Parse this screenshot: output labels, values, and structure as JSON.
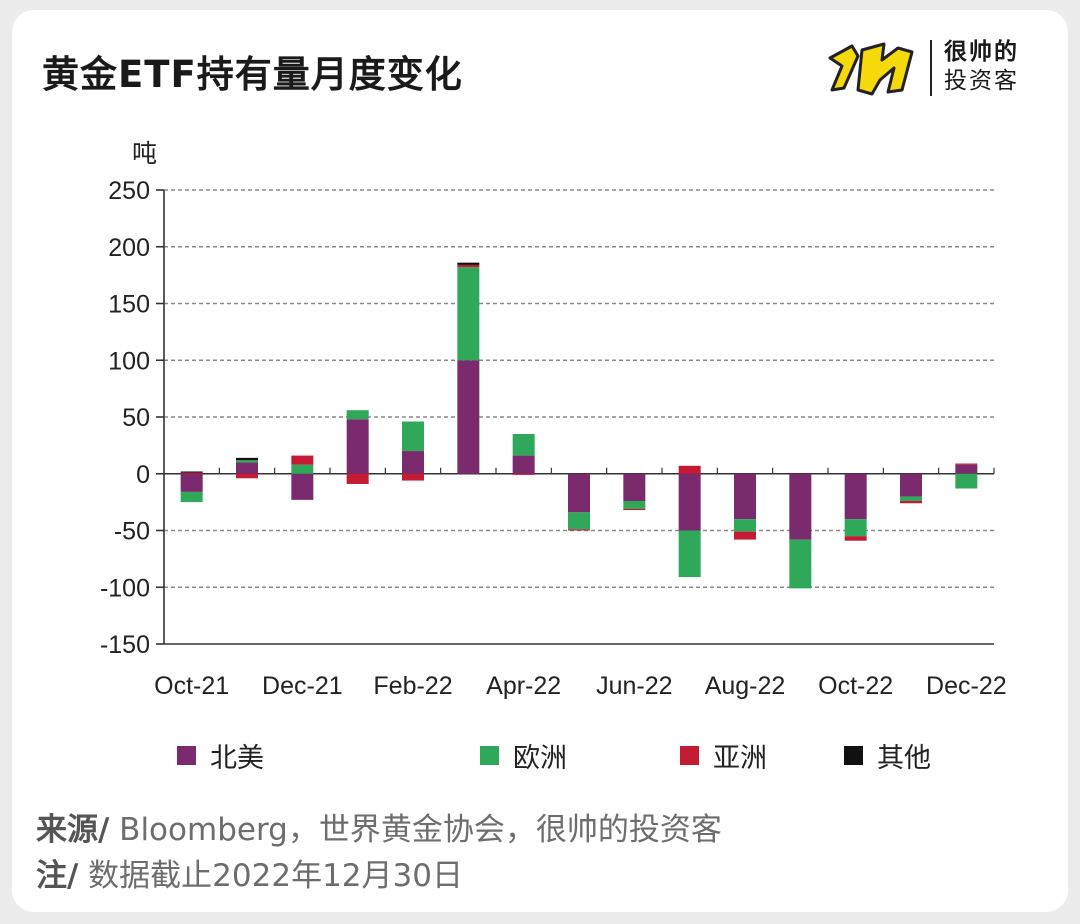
{
  "title": "黄金ETF持有量月度变化",
  "logo": {
    "line1": "很帅的",
    "line2": "投资客",
    "colors": {
      "mark": "#f5d90a",
      "outline": "#222222"
    }
  },
  "unit_label": "吨",
  "chart_data": {
    "type": "bar",
    "stacked": true,
    "categories": [
      "Oct-21",
      "Nov-21",
      "Dec-21",
      "Jan-22",
      "Feb-22",
      "Mar-22",
      "Apr-22",
      "May-22",
      "Jun-22",
      "Jul-22",
      "Aug-22",
      "Sep-22",
      "Oct-22",
      "Nov-22",
      "Dec-22"
    ],
    "x_tick_labels": [
      "Oct-21",
      "Dec-21",
      "Feb-22",
      "Apr-22",
      "Jun-22",
      "Aug-22",
      "Oct-22",
      "Dec-22"
    ],
    "series": [
      {
        "name": "北美",
        "color": "#7b2a6d",
        "values": [
          -16,
          10,
          -23,
          48,
          20,
          100,
          16,
          -34,
          -24,
          -50,
          -40,
          -58,
          -40,
          -20,
          8
        ]
      },
      {
        "name": "欧洲",
        "color": "#2fa85a",
        "values": [
          -9,
          2,
          8,
          8,
          26,
          82,
          19,
          -15,
          -7,
          -41,
          -11,
          -43,
          -15,
          -4,
          -13
        ]
      },
      {
        "name": "亚洲",
        "color": "#c41a34",
        "values": [
          1,
          -4,
          8,
          -9,
          -6,
          2,
          -1,
          -1,
          -1,
          7,
          -7,
          0,
          -4,
          -2,
          1
        ]
      },
      {
        "name": "其他",
        "color": "#111111",
        "values": [
          1,
          2,
          0,
          0,
          0,
          2,
          0,
          0,
          0,
          0,
          0,
          0,
          0,
          0,
          0
        ]
      }
    ],
    "ylim": [
      -150,
      250
    ],
    "yticks": [
      250,
      200,
      150,
      100,
      50,
      0,
      -50,
      -100,
      -150
    ],
    "ylabel": "吨",
    "xlabel": "",
    "grid": true,
    "legend_placement": "bottom"
  },
  "source": {
    "prefix": "来源/",
    "text": " Bloomberg，世界黄金协会，很帅的投资客"
  },
  "note": {
    "prefix": "注/",
    "text": " 数据截止2022年12月30日"
  }
}
